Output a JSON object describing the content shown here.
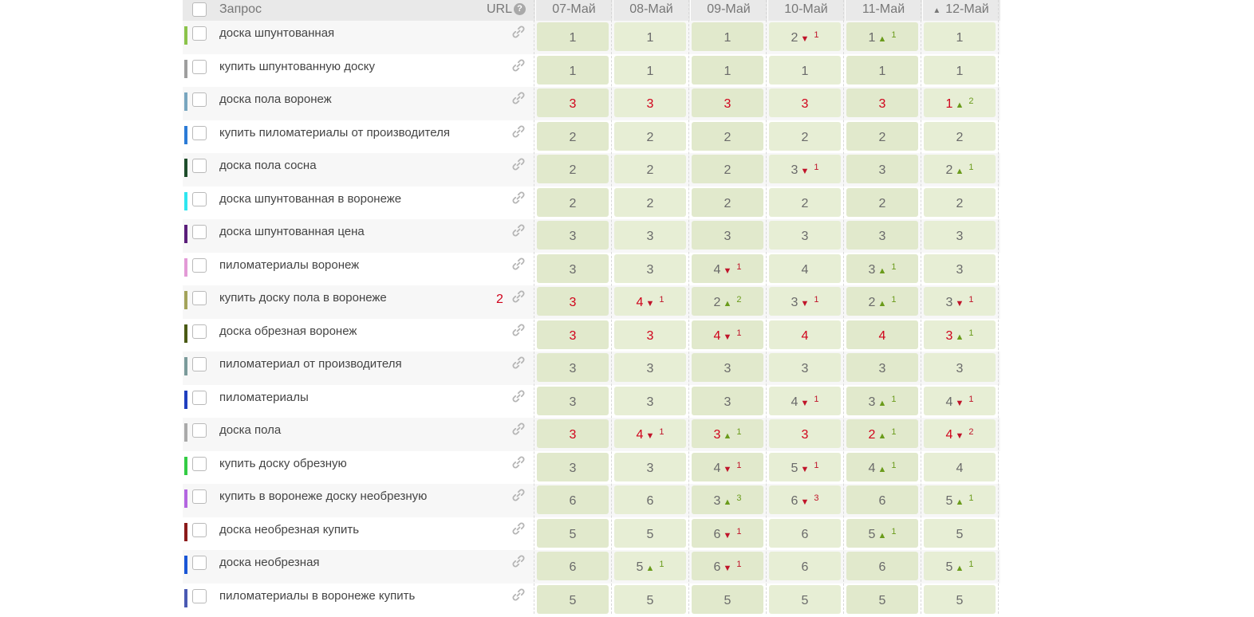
{
  "header": {
    "query_label": "Запрос",
    "url_label": "URL",
    "help_icon": "?",
    "sort_indicator": "▲",
    "dates": [
      "07-Май",
      "08-Май",
      "09-Май",
      "10-Май",
      "11-Май",
      "12-Май"
    ]
  },
  "rows": [
    {
      "query": "доска шпунтованная",
      "color": "#8bc34a",
      "url_value": "",
      "positions": [
        {
          "v": "1",
          "red": false
        },
        {
          "v": "1",
          "red": false
        },
        {
          "v": "1",
          "red": false
        },
        {
          "v": "2",
          "red": false,
          "dir": "dn",
          "delta": "1"
        },
        {
          "v": "1",
          "red": false,
          "dir": "up",
          "delta": "1"
        },
        {
          "v": "1",
          "red": false
        }
      ]
    },
    {
      "query": "купить шпунтованную доску",
      "color": "#9e9e9e",
      "url_value": "",
      "positions": [
        {
          "v": "1",
          "red": false
        },
        {
          "v": "1",
          "red": false
        },
        {
          "v": "1",
          "red": false
        },
        {
          "v": "1",
          "red": false
        },
        {
          "v": "1",
          "red": false
        },
        {
          "v": "1",
          "red": false
        }
      ]
    },
    {
      "query": "доска пола воронеж",
      "color": "#78a6bf",
      "url_value": "",
      "positions": [
        {
          "v": "3",
          "red": true
        },
        {
          "v": "3",
          "red": true
        },
        {
          "v": "3",
          "red": true
        },
        {
          "v": "3",
          "red": true
        },
        {
          "v": "3",
          "red": true
        },
        {
          "v": "1",
          "red": true,
          "dir": "up",
          "delta": "2"
        }
      ]
    },
    {
      "query": "купить пиломатериалы от производителя",
      "color": "#2b7bd6",
      "url_value": "",
      "positions": [
        {
          "v": "2",
          "red": false
        },
        {
          "v": "2",
          "red": false
        },
        {
          "v": "2",
          "red": false
        },
        {
          "v": "2",
          "red": false
        },
        {
          "v": "2",
          "red": false
        },
        {
          "v": "2",
          "red": false
        }
      ]
    },
    {
      "query": "доска пола сосна",
      "color": "#1e4d2b",
      "url_value": "",
      "positions": [
        {
          "v": "2",
          "red": false
        },
        {
          "v": "2",
          "red": false
        },
        {
          "v": "2",
          "red": false
        },
        {
          "v": "3",
          "red": false,
          "dir": "dn",
          "delta": "1"
        },
        {
          "v": "3",
          "red": false
        },
        {
          "v": "2",
          "red": false,
          "dir": "up",
          "delta": "1"
        }
      ]
    },
    {
      "query": "доска шпунтованная в воронеже",
      "color": "#2ee6f0",
      "url_value": "",
      "positions": [
        {
          "v": "2",
          "red": false
        },
        {
          "v": "2",
          "red": false
        },
        {
          "v": "2",
          "red": false
        },
        {
          "v": "2",
          "red": false
        },
        {
          "v": "2",
          "red": false
        },
        {
          "v": "2",
          "red": false
        }
      ]
    },
    {
      "query": "доска шпунтованная цена",
      "color": "#5a1e7a",
      "url_value": "",
      "positions": [
        {
          "v": "3",
          "red": false
        },
        {
          "v": "3",
          "red": false
        },
        {
          "v": "3",
          "red": false
        },
        {
          "v": "3",
          "red": false
        },
        {
          "v": "3",
          "red": false
        },
        {
          "v": "3",
          "red": false
        }
      ]
    },
    {
      "query": "пиломатериалы воронеж",
      "color": "#e39ad6",
      "url_value": "",
      "positions": [
        {
          "v": "3",
          "red": false
        },
        {
          "v": "3",
          "red": false
        },
        {
          "v": "4",
          "red": false,
          "dir": "dn",
          "delta": "1"
        },
        {
          "v": "4",
          "red": false
        },
        {
          "v": "3",
          "red": false,
          "dir": "up",
          "delta": "1"
        },
        {
          "v": "3",
          "red": false
        }
      ]
    },
    {
      "query": "купить доску пола в воронеже",
      "color": "#a3a35a",
      "url_value": "2",
      "positions": [
        {
          "v": "3",
          "red": true
        },
        {
          "v": "4",
          "red": true,
          "dir": "dn",
          "delta": "1"
        },
        {
          "v": "2",
          "red": false,
          "dir": "up",
          "delta": "2"
        },
        {
          "v": "3",
          "red": false,
          "dir": "dn",
          "delta": "1"
        },
        {
          "v": "2",
          "red": false,
          "dir": "up",
          "delta": "1"
        },
        {
          "v": "3",
          "red": false,
          "dir": "dn",
          "delta": "1"
        }
      ]
    },
    {
      "query": "доска обрезная воронеж",
      "color": "#4a5a14",
      "url_value": "",
      "positions": [
        {
          "v": "3",
          "red": true
        },
        {
          "v": "3",
          "red": true
        },
        {
          "v": "4",
          "red": true,
          "dir": "dn",
          "delta": "1"
        },
        {
          "v": "4",
          "red": true
        },
        {
          "v": "4",
          "red": true
        },
        {
          "v": "3",
          "red": true,
          "dir": "up",
          "delta": "1"
        }
      ]
    },
    {
      "query": "пиломатериал от производителя",
      "color": "#7a9a9a",
      "url_value": "",
      "positions": [
        {
          "v": "3",
          "red": false
        },
        {
          "v": "3",
          "red": false
        },
        {
          "v": "3",
          "red": false
        },
        {
          "v": "3",
          "red": false
        },
        {
          "v": "3",
          "red": false
        },
        {
          "v": "3",
          "red": false
        }
      ]
    },
    {
      "query": "пиломатериалы",
      "color": "#1f3fbf",
      "url_value": "",
      "positions": [
        {
          "v": "3",
          "red": false
        },
        {
          "v": "3",
          "red": false
        },
        {
          "v": "3",
          "red": false
        },
        {
          "v": "4",
          "red": false,
          "dir": "dn",
          "delta": "1"
        },
        {
          "v": "3",
          "red": false,
          "dir": "up",
          "delta": "1"
        },
        {
          "v": "4",
          "red": false,
          "dir": "dn",
          "delta": "1"
        }
      ]
    },
    {
      "query": "доска пола",
      "color": "#aaaaaa",
      "url_value": "",
      "positions": [
        {
          "v": "3",
          "red": true
        },
        {
          "v": "4",
          "red": true,
          "dir": "dn",
          "delta": "1"
        },
        {
          "v": "3",
          "red": true,
          "dir": "up",
          "delta": "1"
        },
        {
          "v": "3",
          "red": true
        },
        {
          "v": "2",
          "red": true,
          "dir": "up",
          "delta": "1"
        },
        {
          "v": "4",
          "red": true,
          "dir": "dn",
          "delta": "2"
        }
      ]
    },
    {
      "query": "купить доску обрезную",
      "color": "#33cc44",
      "url_value": "",
      "positions": [
        {
          "v": "3",
          "red": false
        },
        {
          "v": "3",
          "red": false
        },
        {
          "v": "4",
          "red": false,
          "dir": "dn",
          "delta": "1"
        },
        {
          "v": "5",
          "red": false,
          "dir": "dn",
          "delta": "1"
        },
        {
          "v": "4",
          "red": false,
          "dir": "up",
          "delta": "1"
        },
        {
          "v": "4",
          "red": false
        }
      ]
    },
    {
      "query": "купить в воронеже доску необрезную",
      "color": "#b366e0",
      "url_value": "",
      "positions": [
        {
          "v": "6",
          "red": false
        },
        {
          "v": "6",
          "red": false
        },
        {
          "v": "3",
          "red": false,
          "dir": "up",
          "delta": "3"
        },
        {
          "v": "6",
          "red": false,
          "dir": "dn",
          "delta": "3"
        },
        {
          "v": "6",
          "red": false
        },
        {
          "v": "5",
          "red": false,
          "dir": "up",
          "delta": "1"
        }
      ]
    },
    {
      "query": "доска необрезная купить",
      "color": "#8b1a1a",
      "url_value": "",
      "positions": [
        {
          "v": "5",
          "red": false
        },
        {
          "v": "5",
          "red": false
        },
        {
          "v": "6",
          "red": false,
          "dir": "dn",
          "delta": "1"
        },
        {
          "v": "6",
          "red": false
        },
        {
          "v": "5",
          "red": false,
          "dir": "up",
          "delta": "1"
        },
        {
          "v": "5",
          "red": false
        }
      ]
    },
    {
      "query": "доска необрезная",
      "color": "#1a56d6",
      "url_value": "",
      "positions": [
        {
          "v": "6",
          "red": false
        },
        {
          "v": "5",
          "red": false,
          "dir": "up",
          "delta": "1"
        },
        {
          "v": "6",
          "red": false,
          "dir": "dn",
          "delta": "1"
        },
        {
          "v": "6",
          "red": false
        },
        {
          "v": "6",
          "red": false
        },
        {
          "v": "5",
          "red": false,
          "dir": "up",
          "delta": "1"
        }
      ]
    },
    {
      "query": "пиломатериалы в воронеже купить",
      "color": "#4a5ab3",
      "url_value": "",
      "positions": [
        {
          "v": "5",
          "red": false
        },
        {
          "v": "5",
          "red": false
        },
        {
          "v": "5",
          "red": false
        },
        {
          "v": "5",
          "red": false
        },
        {
          "v": "5",
          "red": false
        },
        {
          "v": "5",
          "red": false
        }
      ]
    }
  ]
}
